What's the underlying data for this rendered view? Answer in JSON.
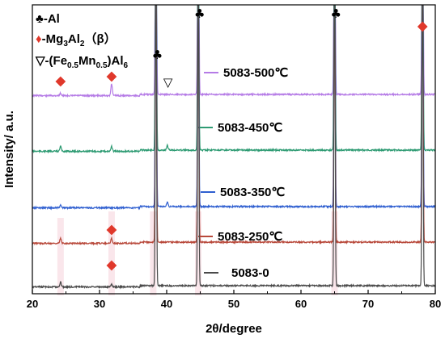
{
  "chart_data": {
    "type": "line",
    "xlabel": "2θ/degree",
    "ylabel": "Intensity/ a.u.",
    "xlim": [
      20,
      80
    ],
    "x_ticks": [
      "20",
      "30",
      "40",
      "50",
      "60",
      "70",
      "80"
    ],
    "series": [
      {
        "name": "5083-500℃",
        "color": "#b57be6",
        "peaks": [
          [
            38.4,
            0.95
          ],
          [
            44.7,
            0.9
          ],
          [
            65.0,
            0.9
          ],
          [
            78.1,
            0.9
          ],
          [
            31.8,
            0.05
          ],
          [
            24.2,
            0.01
          ]
        ]
      },
      {
        "name": "5083-450℃",
        "color": "#2e9b73",
        "peaks": [
          [
            38.4,
            0.9
          ],
          [
            44.7,
            0.95
          ],
          [
            65.0,
            0.9
          ],
          [
            78.1,
            0.9
          ],
          [
            24.2,
            0.02
          ],
          [
            31.8,
            0.02
          ],
          [
            40.1,
            0.02
          ]
        ]
      },
      {
        "name": "5083-350℃",
        "color": "#2f5fd0",
        "peaks": [
          [
            38.4,
            0.9
          ],
          [
            44.7,
            0.95
          ],
          [
            65.0,
            0.9
          ],
          [
            78.1,
            0.9
          ],
          [
            24.2,
            0.01
          ],
          [
            40.1,
            0.02
          ]
        ]
      },
      {
        "name": "5083-250℃",
        "color": "#b8483a",
        "peaks": [
          [
            38.4,
            0.9
          ],
          [
            44.7,
            0.95
          ],
          [
            65.0,
            0.9
          ],
          [
            78.1,
            0.9
          ],
          [
            24.2,
            0.02
          ],
          [
            31.8,
            0.02
          ]
        ]
      },
      {
        "name": "5083-0",
        "color": "#4a4a4a",
        "peaks": [
          [
            38.4,
            0.9
          ],
          [
            44.7,
            0.95
          ],
          [
            65.0,
            0.9
          ],
          [
            78.1,
            0.9
          ],
          [
            24.2,
            0.02
          ],
          [
            31.8,
            0.01
          ]
        ]
      }
    ],
    "annotations": {
      "al_symbol": "♣",
      "beta_symbol": "♦",
      "fe_symbol": "▽"
    },
    "legend": {
      "al": "♣-Al",
      "beta_prefix": "-Mg",
      "beta_sub1": "3",
      "beta_mid": "Al",
      "beta_sub2": "2",
      "beta_suffix": "（β）",
      "fe_prefix": "▽-(Fe",
      "fe_sub1": "0.5",
      "fe_mid": "Mn",
      "fe_sub2": "0.5",
      "fe_suffix": ")Al",
      "fe_sub3": "6",
      "placement": "top-left"
    },
    "colors": {
      "beta_marker": "#e0382b",
      "band": "#f4c7d3"
    }
  }
}
